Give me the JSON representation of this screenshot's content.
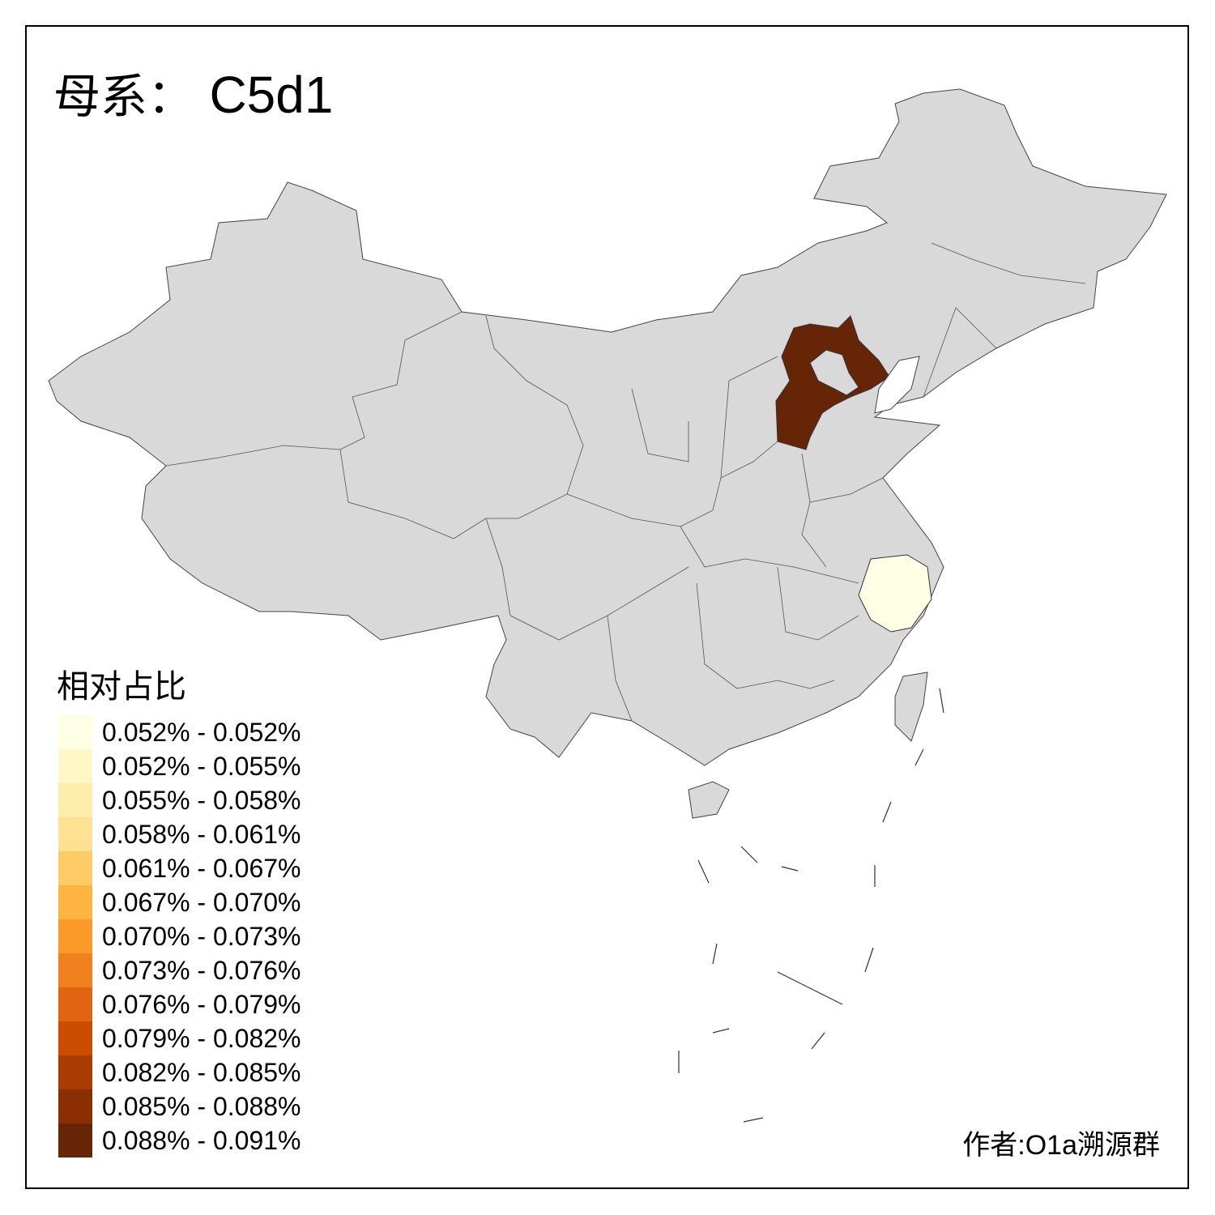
{
  "title": {
    "prefix": "母系：",
    "haplogroup": "C5d1"
  },
  "legend": {
    "title": "相对占比",
    "items": [
      {
        "label": "0.052% - 0.052%",
        "color": "#FFFFE5"
      },
      {
        "label": "0.052% - 0.055%",
        "color": "#FFF8C6"
      },
      {
        "label": "0.055% - 0.058%",
        "color": "#FEEDAA"
      },
      {
        "label": "0.058% - 0.061%",
        "color": "#FEE193"
      },
      {
        "label": "0.061% - 0.067%",
        "color": "#FECC66"
      },
      {
        "label": "0.067% - 0.070%",
        "color": "#FEB441"
      },
      {
        "label": "0.070% - 0.073%",
        "color": "#FB9A29"
      },
      {
        "label": "0.073% - 0.076%",
        "color": "#F0801E"
      },
      {
        "label": "0.076% - 0.079%",
        "color": "#E06412"
      },
      {
        "label": "0.079% - 0.082%",
        "color": "#CC4C02"
      },
      {
        "label": "0.082% - 0.085%",
        "color": "#AA3C03"
      },
      {
        "label": "0.085% - 0.088%",
        "color": "#8A2F04"
      },
      {
        "label": "0.088% - 0.091%",
        "color": "#662506"
      }
    ]
  },
  "map": {
    "no_data_color": "#D9D9D9",
    "highlighted_regions": [
      {
        "region": "Hebei",
        "bin": "0.088% - 0.091%",
        "color": "#662506"
      },
      {
        "region": "Zhejiang",
        "bin": "0.052% - 0.052%",
        "color": "#FFFFE5"
      }
    ]
  },
  "author": "作者:O1a溯源群"
}
